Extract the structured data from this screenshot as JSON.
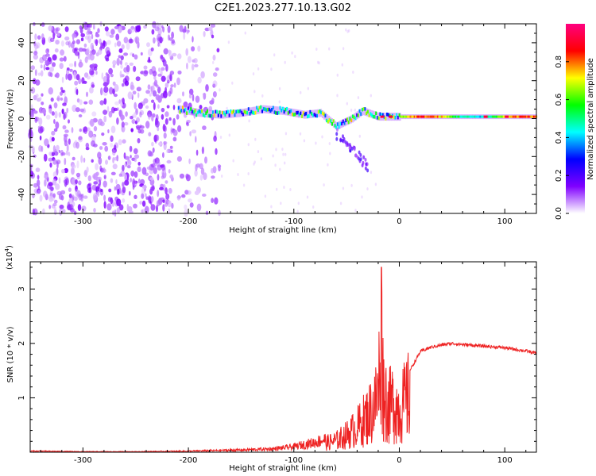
{
  "figure": {
    "title": "C2E1.2023.277.10.13.G02"
  },
  "chart_data": [
    {
      "type": "heatmap",
      "xlabel": "Height of straight line (km)",
      "ylabel": "Frequency (Hz)",
      "xlim": [
        -350,
        130
      ],
      "ylim": [
        -50,
        50
      ],
      "xticks": [
        -300,
        -200,
        -100,
        0,
        100
      ],
      "yticks": [
        -40,
        -20,
        0,
        20,
        40
      ],
      "colorbar": {
        "label": "Normalized spectral amplitude",
        "range": [
          0.0,
          1.0
        ],
        "ticks": [
          "0.0",
          "0.2",
          "0.4",
          "0.6",
          "0.8"
        ],
        "colormap": [
          "#ffffff",
          "#8000ff",
          "#0000ff",
          "#00ffff",
          "#00ff00",
          "#ffff00",
          "#ff0000",
          "#ff0080"
        ]
      },
      "signal_trace": [
        {
          "x": -210,
          "y": 5
        },
        {
          "x": -190,
          "y": 3
        },
        {
          "x": -170,
          "y": 2
        },
        {
          "x": -150,
          "y": 3
        },
        {
          "x": -130,
          "y": 5
        },
        {
          "x": -110,
          "y": 4
        },
        {
          "x": -90,
          "y": 2
        },
        {
          "x": -75,
          "y": 3
        },
        {
          "x": -60,
          "y": -4
        },
        {
          "x": -45,
          "y": 0
        },
        {
          "x": -35,
          "y": 4
        },
        {
          "x": -20,
          "y": 1
        },
        {
          "x": 0,
          "y": 1
        },
        {
          "x": 50,
          "y": 1
        },
        {
          "x": 130,
          "y": 1
        }
      ],
      "noise_region": {
        "x_from": -350,
        "x_to": -180
      }
    },
    {
      "type": "line",
      "xlabel": "Height of straight line (km)",
      "ylabel": "SNR (10 * v/v)",
      "y_multiplier": "(x10",
      "y_multiplier_exp": "4",
      "xlim": [
        -350,
        130
      ],
      "ylim": [
        0,
        3.5
      ],
      "xticks": [
        -300,
        -200,
        -100,
        0,
        100
      ],
      "yticks": [
        1,
        2,
        3
      ],
      "series": [
        {
          "color": "#ee2222",
          "x": [
            -350,
            -300,
            -250,
            -200,
            -150,
            -120,
            -100,
            -80,
            -60,
            -50,
            -40,
            -30,
            -25,
            -20,
            -17,
            -15,
            -10,
            -5,
            0,
            10,
            20,
            30,
            40,
            50,
            60,
            80,
            100,
            120,
            130
          ],
          "y": [
            0.02,
            0.01,
            0.01,
            0.02,
            0.04,
            0.06,
            0.1,
            0.18,
            0.3,
            0.45,
            0.65,
            0.95,
            1.15,
            1.5,
            3.4,
            1.6,
            1.2,
            1.3,
            1.1,
            1.5,
            1.85,
            1.93,
            1.97,
            2.0,
            1.98,
            1.95,
            1.92,
            1.86,
            1.82
          ]
        }
      ]
    }
  ]
}
